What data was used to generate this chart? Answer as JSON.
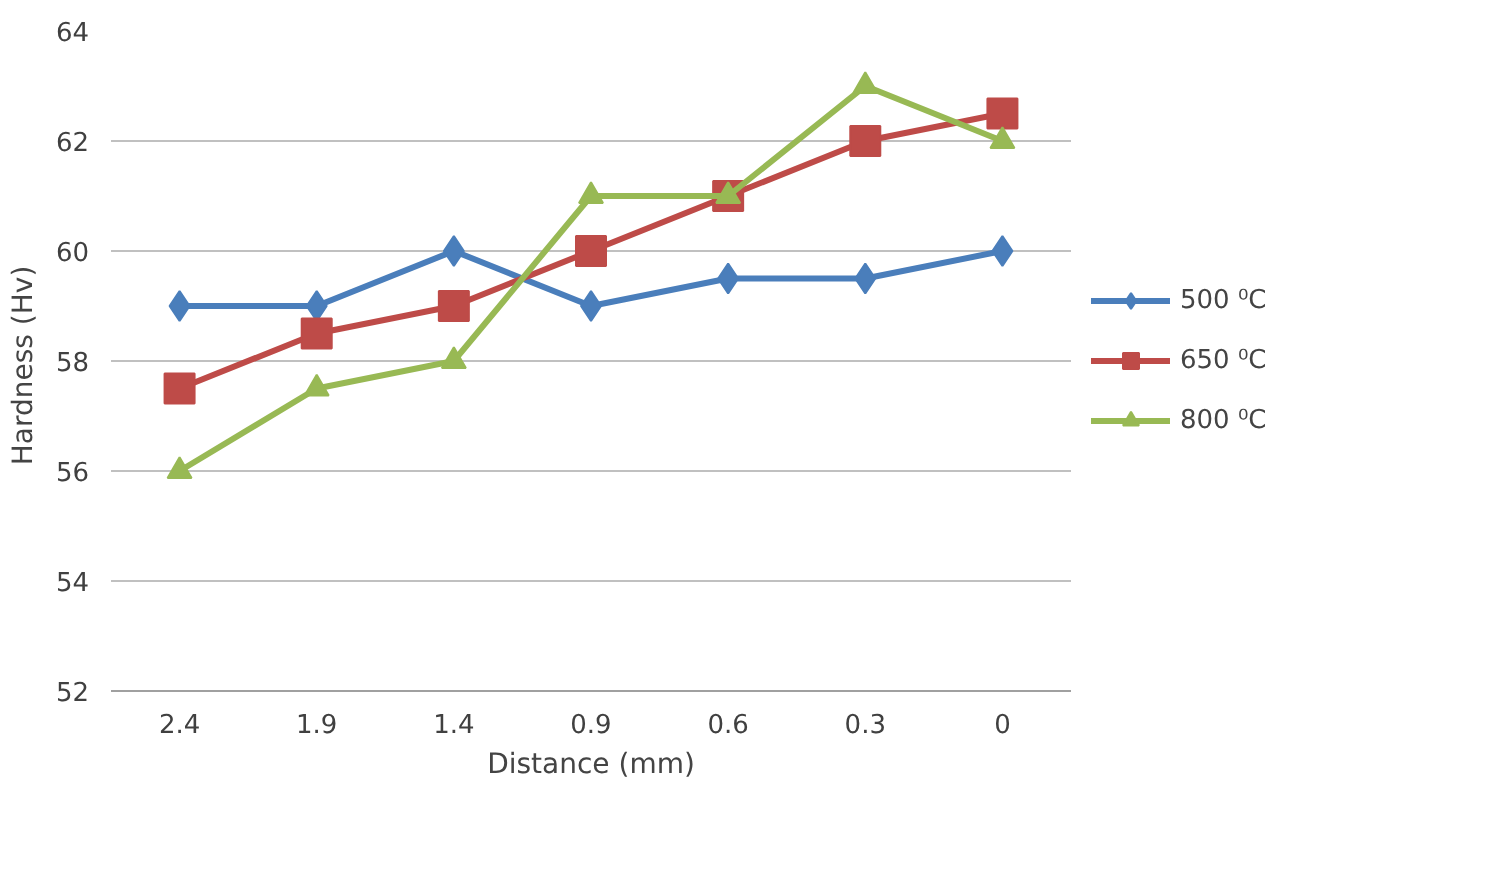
{
  "chart_data": {
    "type": "line",
    "xlabel": "Distance (mm)",
    "ylabel": "Hardness  (Hv)",
    "categories": [
      "2.4",
      "1.9",
      "1.4",
      "0.9",
      "0.6",
      "0.3",
      "0"
    ],
    "series": [
      {
        "name": "500 ⁰C",
        "color": "#4a7ebb",
        "marker": "diamond",
        "values": [
          59,
          59,
          60,
          59,
          59.5,
          59.5,
          60
        ]
      },
      {
        "name": "650 ⁰C",
        "color": "#be4b48",
        "marker": "square",
        "values": [
          57.5,
          58.5,
          59,
          60,
          61,
          62,
          62.5
        ]
      },
      {
        "name": "800 ⁰C",
        "color": "#98b954",
        "marker": "triangle",
        "values": [
          56,
          57.5,
          58,
          61,
          61,
          63,
          62
        ]
      }
    ],
    "ylim": [
      52,
      64
    ],
    "yticks": [
      52,
      54,
      56,
      58,
      60,
      62,
      64
    ],
    "grid": "y",
    "legend": "right",
    "line_style": "solid"
  }
}
